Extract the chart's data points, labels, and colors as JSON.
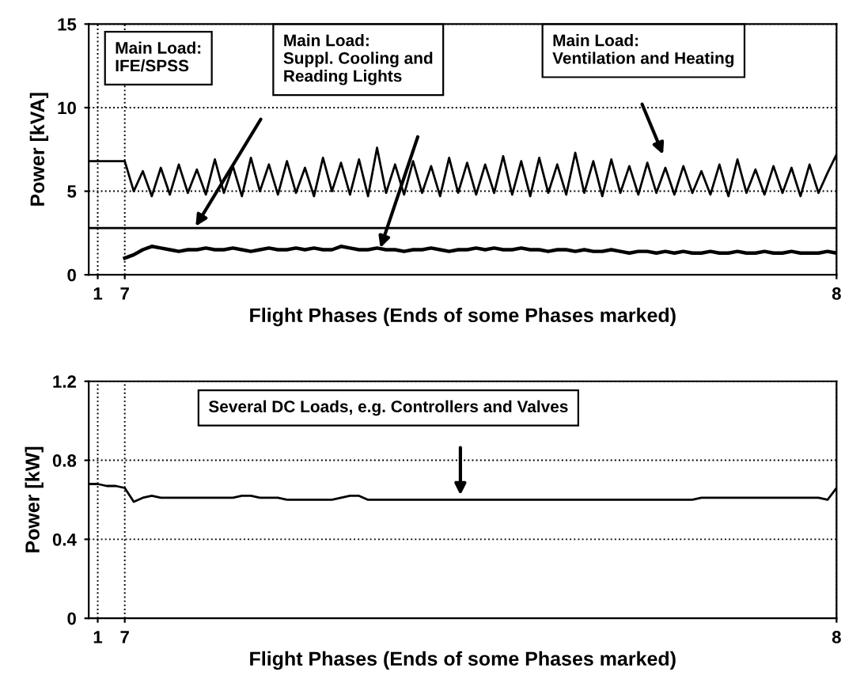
{
  "chart_data": [
    {
      "type": "line",
      "xlabel": "Flight Phases (Ends of some Phases marked)",
      "ylabel": "Power [kVA]",
      "ylim": [
        0,
        15
      ],
      "yticks": [
        0,
        5,
        10,
        15
      ],
      "grid": true,
      "line_style": "solid",
      "categories": [
        null,
        "1",
        null,
        null,
        "7",
        null,
        null,
        null,
        null,
        null,
        null,
        null,
        null,
        null,
        null,
        null,
        null,
        null,
        null,
        null,
        null,
        null,
        null,
        null,
        null,
        null,
        null,
        null,
        null,
        null,
        null,
        null,
        null,
        null,
        null,
        null,
        null,
        null,
        null,
        null,
        null,
        null,
        null,
        null,
        null,
        null,
        null,
        null,
        null,
        null,
        null,
        null,
        null,
        null,
        null,
        null,
        null,
        null,
        null,
        null,
        null,
        null,
        null,
        null,
        null,
        null,
        null,
        null,
        null,
        null,
        null,
        null,
        null,
        null,
        null,
        null,
        null,
        null,
        null,
        null,
        null,
        null,
        null,
        "8"
      ],
      "series": [
        {
          "color": "#000000",
          "values": [
            6.8,
            6.8,
            6.8,
            6.8,
            6.8,
            5.0,
            6.2,
            4.7,
            6.4,
            4.8,
            6.6,
            4.9,
            6.3,
            4.8,
            6.9,
            4.9,
            6.5,
            4.7,
            7.0,
            5.0,
            6.6,
            4.8,
            6.8,
            4.9,
            6.4,
            4.7,
            7.0,
            5.0,
            6.7,
            4.8,
            6.9,
            4.7,
            7.6,
            4.9,
            6.6,
            4.8,
            6.8,
            4.9,
            6.5,
            4.7,
            7.0,
            4.9,
            6.7,
            4.8,
            6.6,
            4.9,
            7.1,
            4.8,
            6.8,
            4.7,
            7.0,
            4.9,
            6.6,
            4.8,
            7.3,
            4.9,
            6.8,
            4.7,
            6.9,
            4.9,
            6.5,
            4.8,
            6.7,
            4.9,
            6.4,
            4.8,
            6.5,
            4.9,
            6.2,
            4.8,
            6.6,
            4.7,
            6.9,
            4.9,
            6.3,
            4.8,
            6.5,
            4.9,
            6.4,
            4.7,
            6.6,
            4.9,
            6.1,
            7.2
          ]
        },
        {
          "color": "#000000",
          "values": [
            2.8,
            2.8,
            2.8,
            2.8,
            2.8,
            2.8,
            2.8,
            2.8,
            2.8,
            2.8,
            2.8,
            2.8,
            2.8,
            2.8,
            2.8,
            2.8,
            2.8,
            2.8,
            2.8,
            2.8,
            2.8,
            2.8,
            2.8,
            2.8,
            2.8,
            2.8,
            2.8,
            2.8,
            2.8,
            2.8,
            2.8,
            2.8,
            2.8,
            2.8,
            2.8,
            2.8,
            2.8,
            2.8,
            2.8,
            2.8,
            2.8,
            2.8,
            2.8,
            2.8,
            2.8,
            2.8,
            2.8,
            2.8,
            2.8,
            2.8,
            2.8,
            2.8,
            2.8,
            2.8,
            2.8,
            2.8,
            2.8,
            2.8,
            2.8,
            2.8,
            2.8,
            2.8,
            2.8,
            2.8,
            2.8,
            2.8,
            2.8,
            2.8,
            2.8,
            2.8,
            2.8,
            2.8,
            2.8,
            2.8,
            2.8,
            2.8,
            2.8,
            2.8,
            2.8,
            2.8,
            2.8,
            2.8,
            2.8,
            2.8
          ]
        },
        {
          "color": "#000000",
          "values": [
            null,
            null,
            null,
            null,
            1.0,
            1.2,
            1.5,
            1.7,
            1.6,
            1.5,
            1.4,
            1.5,
            1.5,
            1.6,
            1.5,
            1.5,
            1.6,
            1.5,
            1.4,
            1.5,
            1.6,
            1.5,
            1.5,
            1.6,
            1.5,
            1.6,
            1.5,
            1.5,
            1.7,
            1.6,
            1.5,
            1.5,
            1.6,
            1.5,
            1.5,
            1.4,
            1.5,
            1.5,
            1.6,
            1.5,
            1.4,
            1.5,
            1.5,
            1.6,
            1.5,
            1.6,
            1.5,
            1.5,
            1.6,
            1.5,
            1.5,
            1.4,
            1.5,
            1.5,
            1.4,
            1.5,
            1.4,
            1.4,
            1.5,
            1.4,
            1.3,
            1.4,
            1.4,
            1.3,
            1.4,
            1.3,
            1.4,
            1.3,
            1.3,
            1.4,
            1.3,
            1.3,
            1.4,
            1.3,
            1.3,
            1.4,
            1.3,
            1.3,
            1.4,
            1.3,
            1.3,
            1.3,
            1.4,
            1.3
          ]
        }
      ],
      "annotations": [
        "Main Load:\nIFE/SPSS",
        "Main Load:\nSuppl. Cooling and\nReading Lights",
        "Main Load:\nVentilation and Heating"
      ]
    },
    {
      "type": "line",
      "xlabel": "Flight Phases (Ends of some Phases marked)",
      "ylabel": "Power [kW]",
      "ylim": [
        0,
        1.2
      ],
      "yticks": [
        0,
        0.4,
        0.8,
        1.2
      ],
      "grid": true,
      "line_style": "solid",
      "categories": [
        null,
        "1",
        null,
        null,
        "7",
        null,
        null,
        null,
        null,
        null,
        null,
        null,
        null,
        null,
        null,
        null,
        null,
        null,
        null,
        null,
        null,
        null,
        null,
        null,
        null,
        null,
        null,
        null,
        null,
        null,
        null,
        null,
        null,
        null,
        null,
        null,
        null,
        null,
        null,
        null,
        null,
        null,
        null,
        null,
        null,
        null,
        null,
        null,
        null,
        null,
        null,
        null,
        null,
        null,
        null,
        null,
        null,
        null,
        null,
        null,
        null,
        null,
        null,
        null,
        null,
        null,
        null,
        null,
        null,
        null,
        null,
        null,
        null,
        null,
        null,
        null,
        null,
        null,
        null,
        null,
        null,
        null,
        null,
        "8"
      ],
      "series": [
        {
          "color": "#000000",
          "values": [
            0.68,
            0.68,
            0.67,
            0.67,
            0.66,
            0.59,
            0.61,
            0.62,
            0.61,
            0.61,
            0.61,
            0.61,
            0.61,
            0.61,
            0.61,
            0.61,
            0.61,
            0.62,
            0.62,
            0.61,
            0.61,
            0.61,
            0.6,
            0.6,
            0.6,
            0.6,
            0.6,
            0.6,
            0.61,
            0.62,
            0.62,
            0.6,
            0.6,
            0.6,
            0.6,
            0.6,
            0.6,
            0.6,
            0.6,
            0.6,
            0.6,
            0.6,
            0.6,
            0.6,
            0.6,
            0.6,
            0.6,
            0.6,
            0.6,
            0.6,
            0.6,
            0.6,
            0.6,
            0.6,
            0.6,
            0.6,
            0.6,
            0.6,
            0.6,
            0.6,
            0.6,
            0.6,
            0.6,
            0.6,
            0.6,
            0.6,
            0.6,
            0.6,
            0.61,
            0.61,
            0.61,
            0.61,
            0.61,
            0.61,
            0.61,
            0.61,
            0.61,
            0.61,
            0.61,
            0.61,
            0.61,
            0.61,
            0.6,
            0.66
          ]
        }
      ],
      "annotations": [
        "Several DC Loads, e.g. Controllers and Valves"
      ]
    }
  ]
}
